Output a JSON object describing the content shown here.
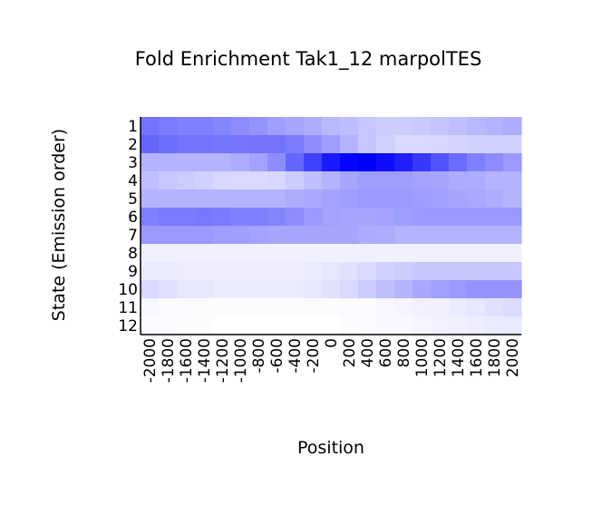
{
  "chart_data": {
    "type": "heatmap",
    "title": "Fold Enrichment Tak1_12 marpolTES",
    "xlabel": "Position",
    "ylabel": "State (Emission order)",
    "x_tick_labels": [
      "-2000",
      "-1800",
      "-1600",
      "-1400",
      "-1200",
      "-1000",
      "-800",
      "-600",
      "-400",
      "-200",
      "0",
      "200",
      "400",
      "600",
      "800",
      "1000",
      "1200",
      "1400",
      "1600",
      "1800",
      "2000"
    ],
    "y_tick_labels": [
      "1",
      "2",
      "3",
      "4",
      "5",
      "6",
      "7",
      "8",
      "9",
      "10",
      "11",
      "12"
    ],
    "color_scale": {
      "low": "#ffffff",
      "high": "#0000ff"
    },
    "grid": false,
    "values": [
      [
        0.55,
        0.52,
        0.5,
        0.5,
        0.48,
        0.45,
        0.42,
        0.38,
        0.35,
        0.32,
        0.28,
        0.26,
        0.22,
        0.2,
        0.2,
        0.21,
        0.23,
        0.25,
        0.28,
        0.3,
        0.32
      ],
      [
        0.6,
        0.57,
        0.55,
        0.55,
        0.54,
        0.54,
        0.55,
        0.55,
        0.52,
        0.45,
        0.38,
        0.3,
        0.22,
        0.18,
        0.15,
        0.15,
        0.16,
        0.17,
        0.18,
        0.18,
        0.18
      ],
      [
        0.3,
        0.3,
        0.3,
        0.3,
        0.3,
        0.32,
        0.36,
        0.45,
        0.6,
        0.75,
        0.9,
        0.98,
        1.0,
        0.95,
        0.88,
        0.78,
        0.68,
        0.58,
        0.5,
        0.45,
        0.4
      ],
      [
        0.25,
        0.22,
        0.2,
        0.18,
        0.16,
        0.15,
        0.15,
        0.16,
        0.2,
        0.25,
        0.3,
        0.35,
        0.38,
        0.38,
        0.38,
        0.36,
        0.35,
        0.33,
        0.32,
        0.3,
        0.3
      ],
      [
        0.3,
        0.3,
        0.3,
        0.3,
        0.3,
        0.3,
        0.3,
        0.3,
        0.32,
        0.34,
        0.36,
        0.38,
        0.4,
        0.4,
        0.4,
        0.38,
        0.37,
        0.35,
        0.34,
        0.32,
        0.3
      ],
      [
        0.5,
        0.52,
        0.52,
        0.53,
        0.52,
        0.5,
        0.5,
        0.48,
        0.45,
        0.4,
        0.36,
        0.35,
        0.35,
        0.36,
        0.38,
        0.4,
        0.4,
        0.4,
        0.4,
        0.4,
        0.4
      ],
      [
        0.4,
        0.4,
        0.4,
        0.4,
        0.38,
        0.38,
        0.36,
        0.35,
        0.35,
        0.35,
        0.35,
        0.35,
        0.33,
        0.32,
        0.3,
        0.3,
        0.3,
        0.3,
        0.3,
        0.3,
        0.3
      ],
      [
        0.06,
        0.06,
        0.06,
        0.06,
        0.06,
        0.06,
        0.06,
        0.06,
        0.06,
        0.06,
        0.06,
        0.06,
        0.06,
        0.06,
        0.06,
        0.06,
        0.06,
        0.06,
        0.06,
        0.06,
        0.06
      ],
      [
        0.08,
        0.08,
        0.07,
        0.07,
        0.07,
        0.07,
        0.07,
        0.07,
        0.07,
        0.08,
        0.1,
        0.12,
        0.15,
        0.18,
        0.2,
        0.22,
        0.22,
        0.22,
        0.22,
        0.22,
        0.22
      ],
      [
        0.15,
        0.12,
        0.1,
        0.1,
        0.08,
        0.08,
        0.08,
        0.08,
        0.08,
        0.1,
        0.12,
        0.15,
        0.2,
        0.25,
        0.3,
        0.34,
        0.37,
        0.4,
        0.42,
        0.42,
        0.42
      ],
      [
        0.03,
        0.02,
        0.01,
        0.01,
        0.01,
        0.01,
        0.01,
        0.01,
        0.01,
        0.01,
        0.01,
        0.02,
        0.02,
        0.03,
        0.04,
        0.05,
        0.06,
        0.08,
        0.1,
        0.12,
        0.14
      ],
      [
        0.02,
        0.02,
        0.01,
        0.01,
        0.0,
        0.0,
        0.0,
        0.0,
        0.0,
        0.0,
        0.0,
        0.01,
        0.02,
        0.03,
        0.03,
        0.04,
        0.05,
        0.06,
        0.07,
        0.08,
        0.09
      ]
    ]
  }
}
